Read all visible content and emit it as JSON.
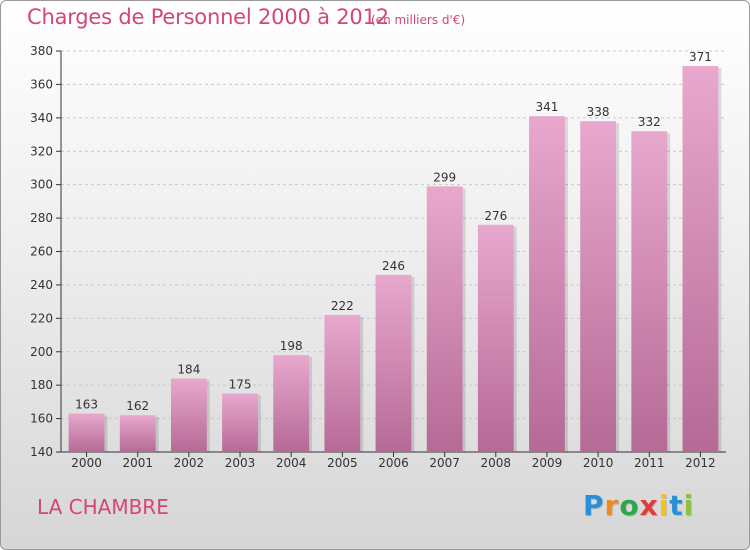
{
  "header": {
    "title": "Charges de Personnel 2000 à 2012",
    "subtitle": "(en milliers d'€)"
  },
  "footer": {
    "city": "LA CHAMBRE",
    "logo_letters": [
      "P",
      "r",
      "o",
      "x",
      "i",
      "t",
      "i"
    ],
    "logo_colors": [
      "#2a8fd6",
      "#f08a1c",
      "#2aa84a",
      "#e23b3b",
      "#f0c419",
      "#2a8fd6",
      "#8ac43f"
    ]
  },
  "colors": {
    "bar": "#d98cba",
    "bar_top": "#e8a8cd",
    "bar_bottom": "#b56a96",
    "text": "#333333",
    "accent": "#d4457a"
  },
  "chart_data": {
    "type": "bar",
    "title": "Charges de Personnel 2000 à 2012",
    "subtitle": "(en milliers d'€)",
    "categories": [
      "2000",
      "2001",
      "2002",
      "2003",
      "2004",
      "2005",
      "2006",
      "2007",
      "2008",
      "2009",
      "2010",
      "2011",
      "2012"
    ],
    "values": [
      163,
      162,
      184,
      175,
      198,
      222,
      246,
      299,
      276,
      341,
      338,
      332,
      371
    ],
    "ylim": [
      140,
      380
    ],
    "yticks": [
      140,
      160,
      180,
      200,
      220,
      240,
      260,
      280,
      300,
      320,
      340,
      360,
      380
    ],
    "grid": true,
    "data_labels": true
  }
}
